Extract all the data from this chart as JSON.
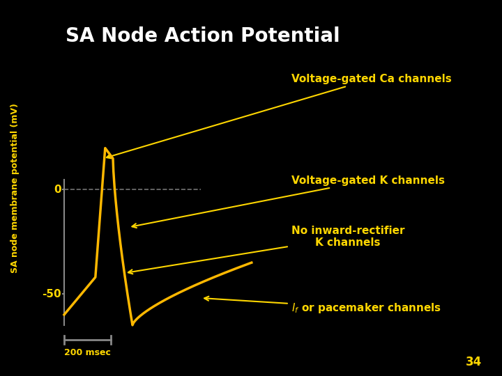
{
  "title": "SA Node Action Potential",
  "ylabel": "SA node membrane potential (mV)",
  "background_color": "#000000",
  "title_color": "#ffffff",
  "curve_color": "#FFB800",
  "label_color": "#FFD700",
  "axis_color": "#888888",
  "dashed_color": "#888888",
  "scale_bar_label": "200 msec",
  "page_number": "34",
  "ylim": [
    -75,
    55
  ],
  "xlim": [
    -10,
    530
  ]
}
